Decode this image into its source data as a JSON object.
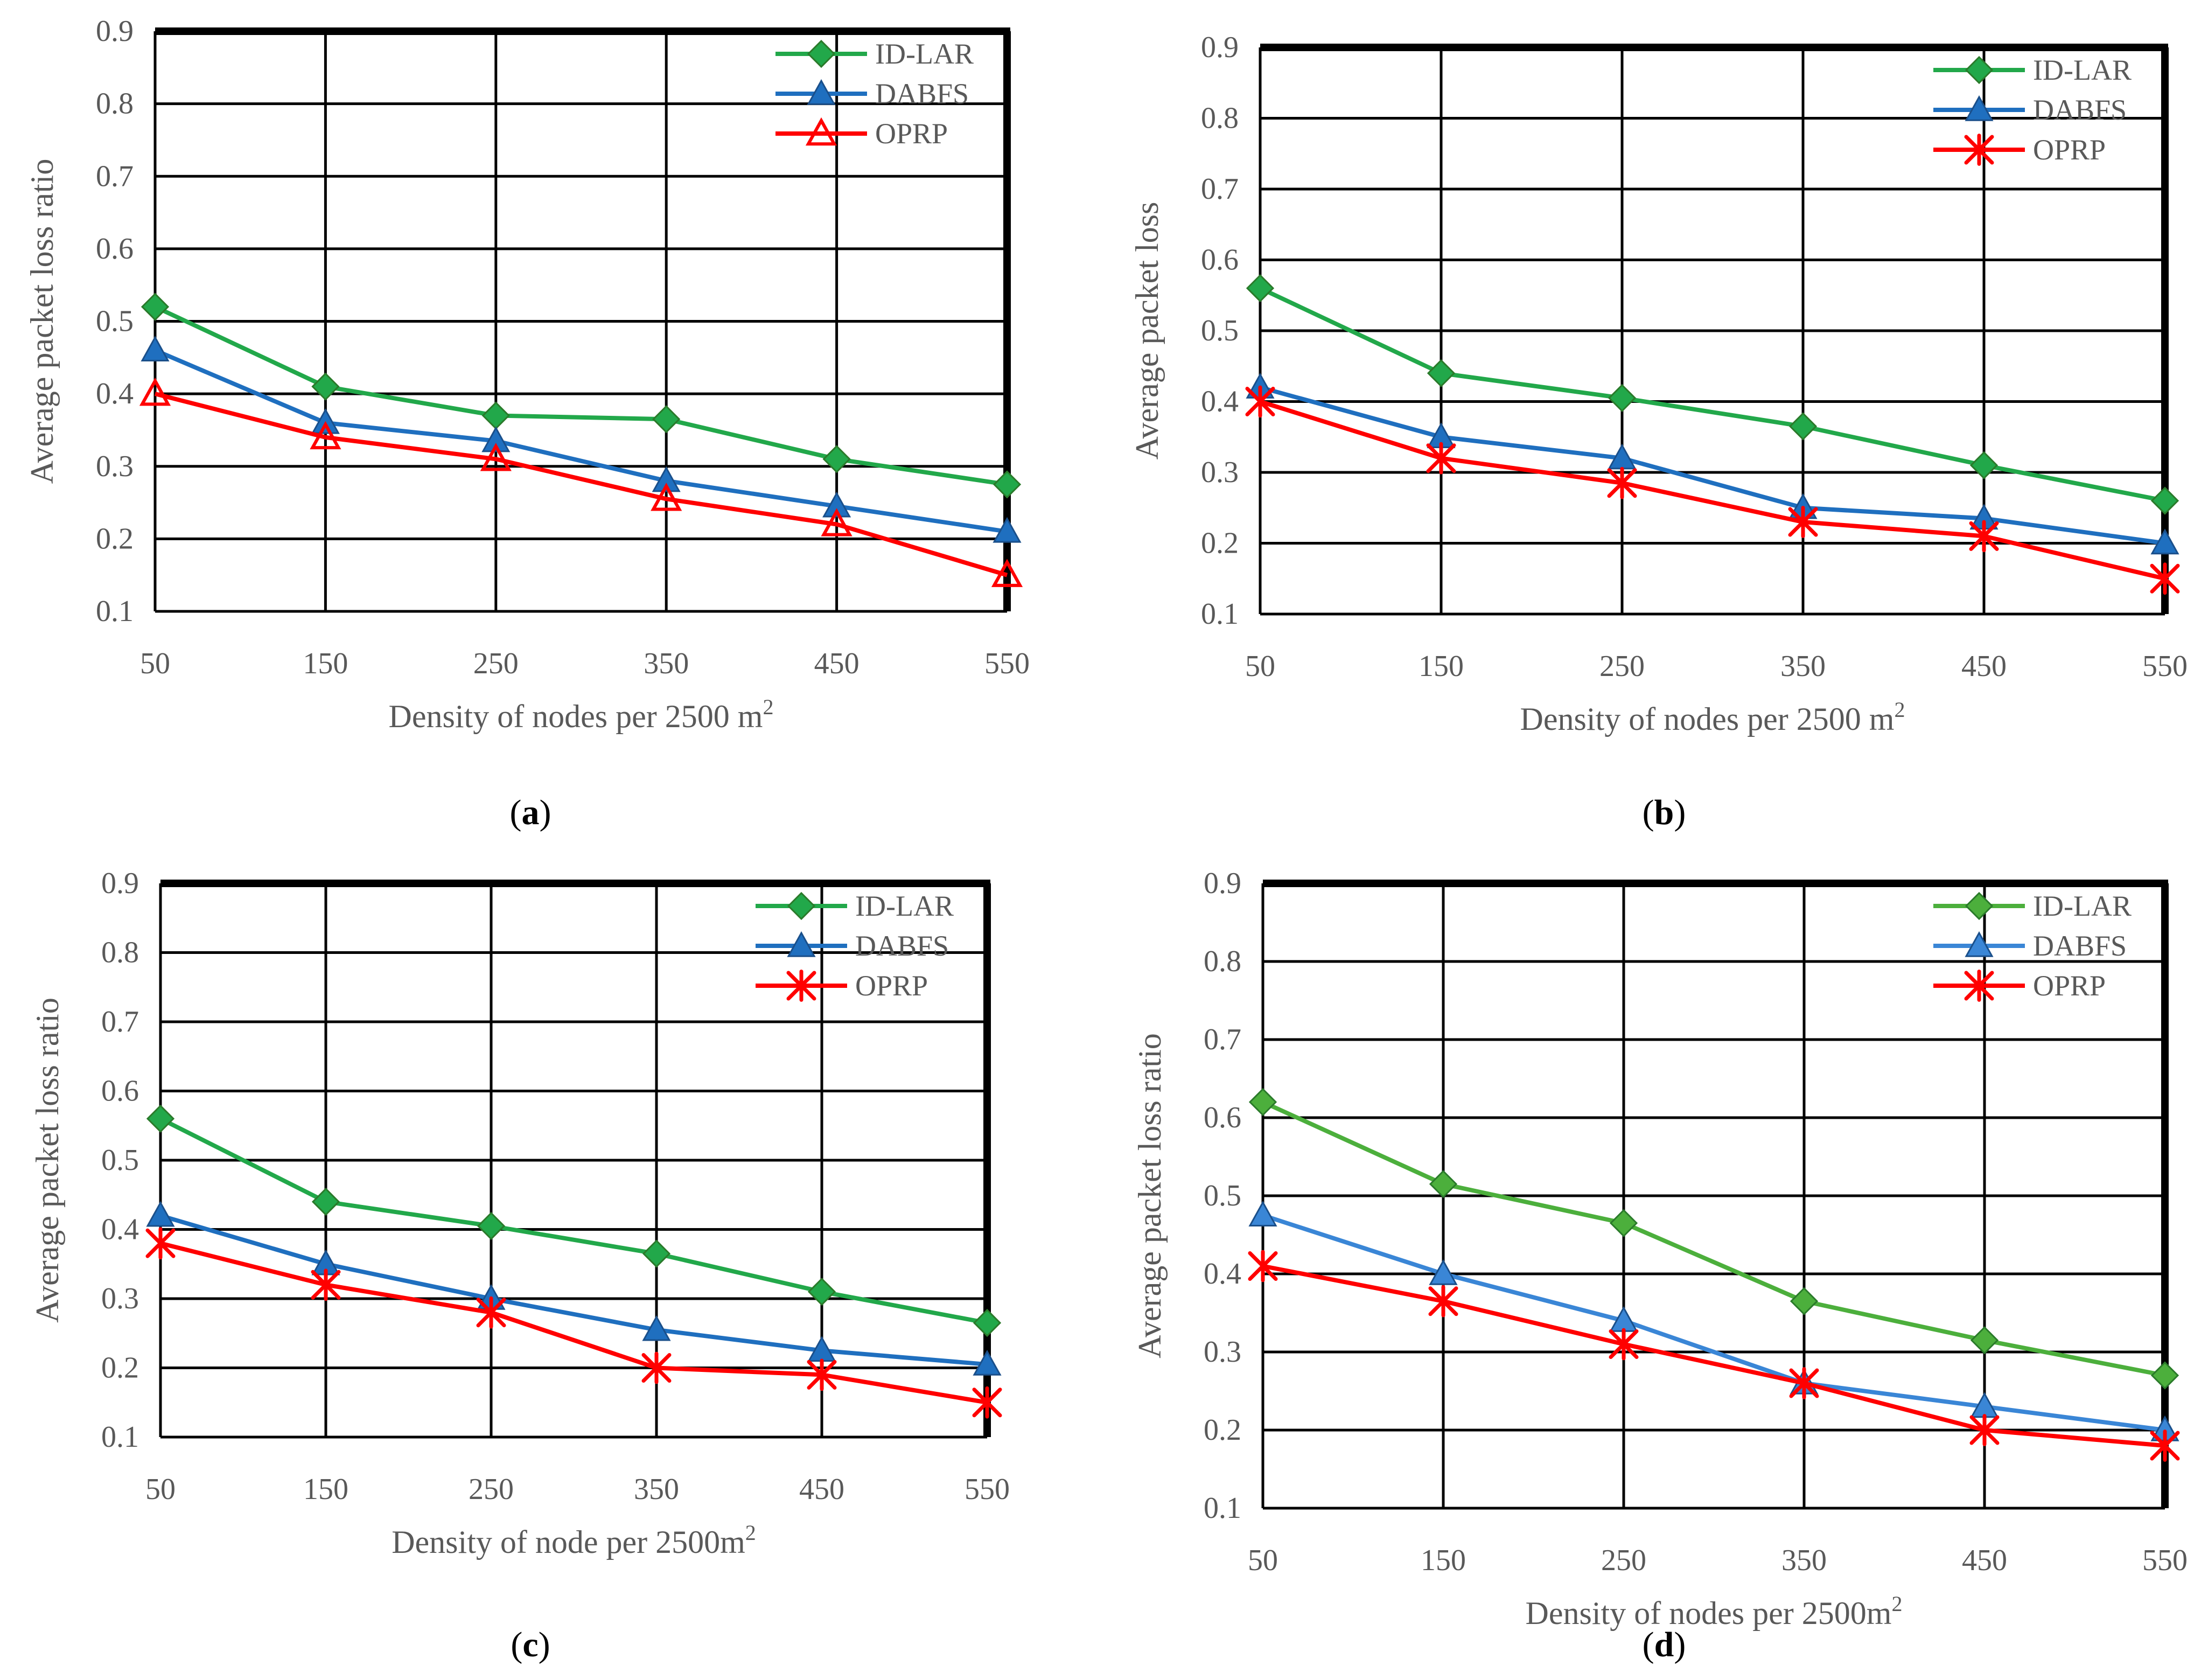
{
  "figure_title": "",
  "colors": {
    "ID-LAR": "#22a84a",
    "DABFS": "#1f6fbf",
    "OPRP": "#ff0000",
    "ID-LAR-d": "#4caf3c",
    "DABFS-d": "#3a86d6"
  },
  "chart_data": [
    {
      "panel": "(a)",
      "panel_letter": "a",
      "type": "line",
      "title": "",
      "xlabel": "Density of nodes per 2500 m",
      "xlabel_sup": "2",
      "ylabel": "Average packet loss ratio",
      "x": [
        50,
        150,
        250,
        350,
        450,
        550
      ],
      "x_tick_labels": [
        "50",
        "150",
        "250",
        "350",
        "450",
        "550"
      ],
      "ylim": [
        0.1,
        0.9
      ],
      "y_ticks": [
        0.1,
        0.2,
        0.3,
        0.4,
        0.5,
        0.6,
        0.7,
        0.8,
        0.9
      ],
      "y_tick_labels": [
        "0.1",
        "0.2",
        "0.3",
        "0.4",
        "0.5",
        "0.6",
        "0.7",
        "0.8",
        "0.9"
      ],
      "grid": true,
      "legend_position": "top-right",
      "series": [
        {
          "name": "ID-LAR",
          "color": "#22a84a",
          "marker": "diamond",
          "values": [
            0.52,
            0.41,
            0.37,
            0.365,
            0.31,
            0.275
          ]
        },
        {
          "name": "DABFS",
          "color": "#1f6fbf",
          "marker": "triangle",
          "values": [
            0.46,
            0.36,
            0.335,
            0.28,
            0.245,
            0.21
          ]
        },
        {
          "name": "OPRP",
          "color": "#ff0000",
          "marker": "triangle-open",
          "values": [
            0.4,
            0.34,
            0.31,
            0.255,
            0.22,
            0.15
          ]
        }
      ]
    },
    {
      "panel": "(b)",
      "panel_letter": "b",
      "type": "line",
      "title": "",
      "xlabel": "Density of nodes per 2500 m",
      "xlabel_sup": "2",
      "ylabel": "Average packet loss",
      "x": [
        50,
        150,
        250,
        350,
        450,
        550
      ],
      "x_tick_labels": [
        "50",
        "150",
        "250",
        "350",
        "450",
        "550"
      ],
      "ylim": [
        0.1,
        0.9
      ],
      "y_ticks": [
        0.1,
        0.2,
        0.3,
        0.4,
        0.5,
        0.6,
        0.7,
        0.8,
        0.9
      ],
      "y_tick_labels": [
        "0.1",
        "0.2",
        "0.3",
        "0.4",
        "0.5",
        "0.6",
        "0.7",
        "0.8",
        "0.9"
      ],
      "grid": true,
      "legend_position": "top-right",
      "series": [
        {
          "name": "ID-LAR",
          "color": "#22a84a",
          "marker": "diamond",
          "values": [
            0.56,
            0.44,
            0.405,
            0.365,
            0.31,
            0.26
          ]
        },
        {
          "name": "DABFS",
          "color": "#1f6fbf",
          "marker": "triangle",
          "values": [
            0.42,
            0.35,
            0.32,
            0.25,
            0.235,
            0.2
          ]
        },
        {
          "name": "OPRP",
          "color": "#ff0000",
          "marker": "star",
          "values": [
            0.4,
            0.32,
            0.285,
            0.23,
            0.21,
            0.15
          ]
        }
      ]
    },
    {
      "panel": "(c)",
      "panel_letter": "c",
      "type": "line",
      "title": "",
      "xlabel": "Density of node per 2500m",
      "xlabel_sup": "2",
      "ylabel": "Average packet loss ratio",
      "x": [
        50,
        150,
        250,
        350,
        450,
        550
      ],
      "x_tick_labels": [
        "50",
        "150",
        "250",
        "350",
        "450",
        "550"
      ],
      "ylim": [
        0.1,
        0.9
      ],
      "y_ticks": [
        0.1,
        0.2,
        0.3,
        0.4,
        0.5,
        0.6,
        0.7,
        0.8,
        0.9
      ],
      "y_tick_labels": [
        "0.1",
        "0.2",
        "0.3",
        "0.4",
        "0.5",
        "0.6",
        "0.7",
        "0.8",
        "0.9"
      ],
      "grid": true,
      "legend_position": "top-right",
      "series": [
        {
          "name": "ID-LAR",
          "color": "#22a84a",
          "marker": "diamond",
          "values": [
            0.56,
            0.44,
            0.405,
            0.365,
            0.31,
            0.265
          ]
        },
        {
          "name": "DABFS",
          "color": "#1f6fbf",
          "marker": "triangle",
          "values": [
            0.42,
            0.35,
            0.3,
            0.255,
            0.225,
            0.205
          ]
        },
        {
          "name": "OPRP",
          "color": "#ff0000",
          "marker": "star",
          "values": [
            0.38,
            0.32,
            0.28,
            0.2,
            0.19,
            0.15
          ]
        }
      ]
    },
    {
      "panel": "(d)",
      "panel_letter": "d",
      "type": "line",
      "title": "",
      "xlabel": "Density of nodes per 2500m",
      "xlabel_sup": "2",
      "ylabel": "Average packet loss ratio",
      "x": [
        50,
        150,
        250,
        350,
        450,
        550
      ],
      "x_tick_labels": [
        "50",
        "150",
        "250",
        "350",
        "450",
        "550"
      ],
      "ylim": [
        0.1,
        0.9
      ],
      "y_ticks": [
        0.1,
        0.2,
        0.3,
        0.4,
        0.5,
        0.6,
        0.7,
        0.8,
        0.9
      ],
      "y_tick_labels": [
        "0.1",
        "0.2",
        "0.3",
        "0.4",
        "0.5",
        "0.6",
        "0.7",
        "0.8",
        "0.9"
      ],
      "grid": true,
      "legend_position": "top-right",
      "series": [
        {
          "name": "ID-LAR",
          "color": "#4caf3c",
          "marker": "diamond",
          "values": [
            0.62,
            0.515,
            0.465,
            0.365,
            0.315,
            0.27
          ]
        },
        {
          "name": "DABFS",
          "color": "#3a86d6",
          "marker": "triangle",
          "values": [
            0.475,
            0.4,
            0.34,
            0.26,
            0.23,
            0.2
          ]
        },
        {
          "name": "OPRP",
          "color": "#ff0000",
          "marker": "star",
          "values": [
            0.41,
            0.365,
            0.31,
            0.26,
            0.2,
            0.18
          ]
        }
      ]
    }
  ]
}
